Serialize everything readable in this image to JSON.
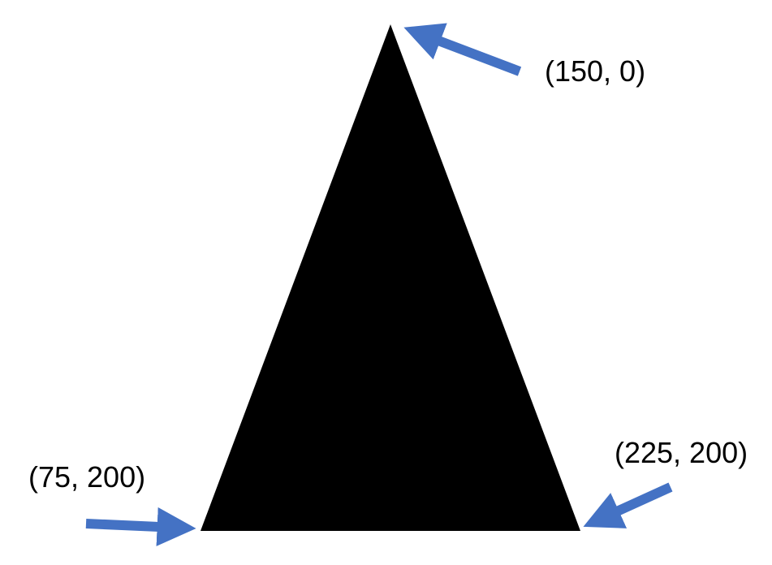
{
  "colors": {
    "triangle_fill": "#000000",
    "arrow_color": "#4472C4",
    "background": "#ffffff",
    "label_color": "#000000"
  },
  "vertices": {
    "top": {
      "label": "(150, 0)"
    },
    "bottom_left": {
      "label": "(75, 200)"
    },
    "bottom_right": {
      "label": "(225, 200)"
    }
  }
}
